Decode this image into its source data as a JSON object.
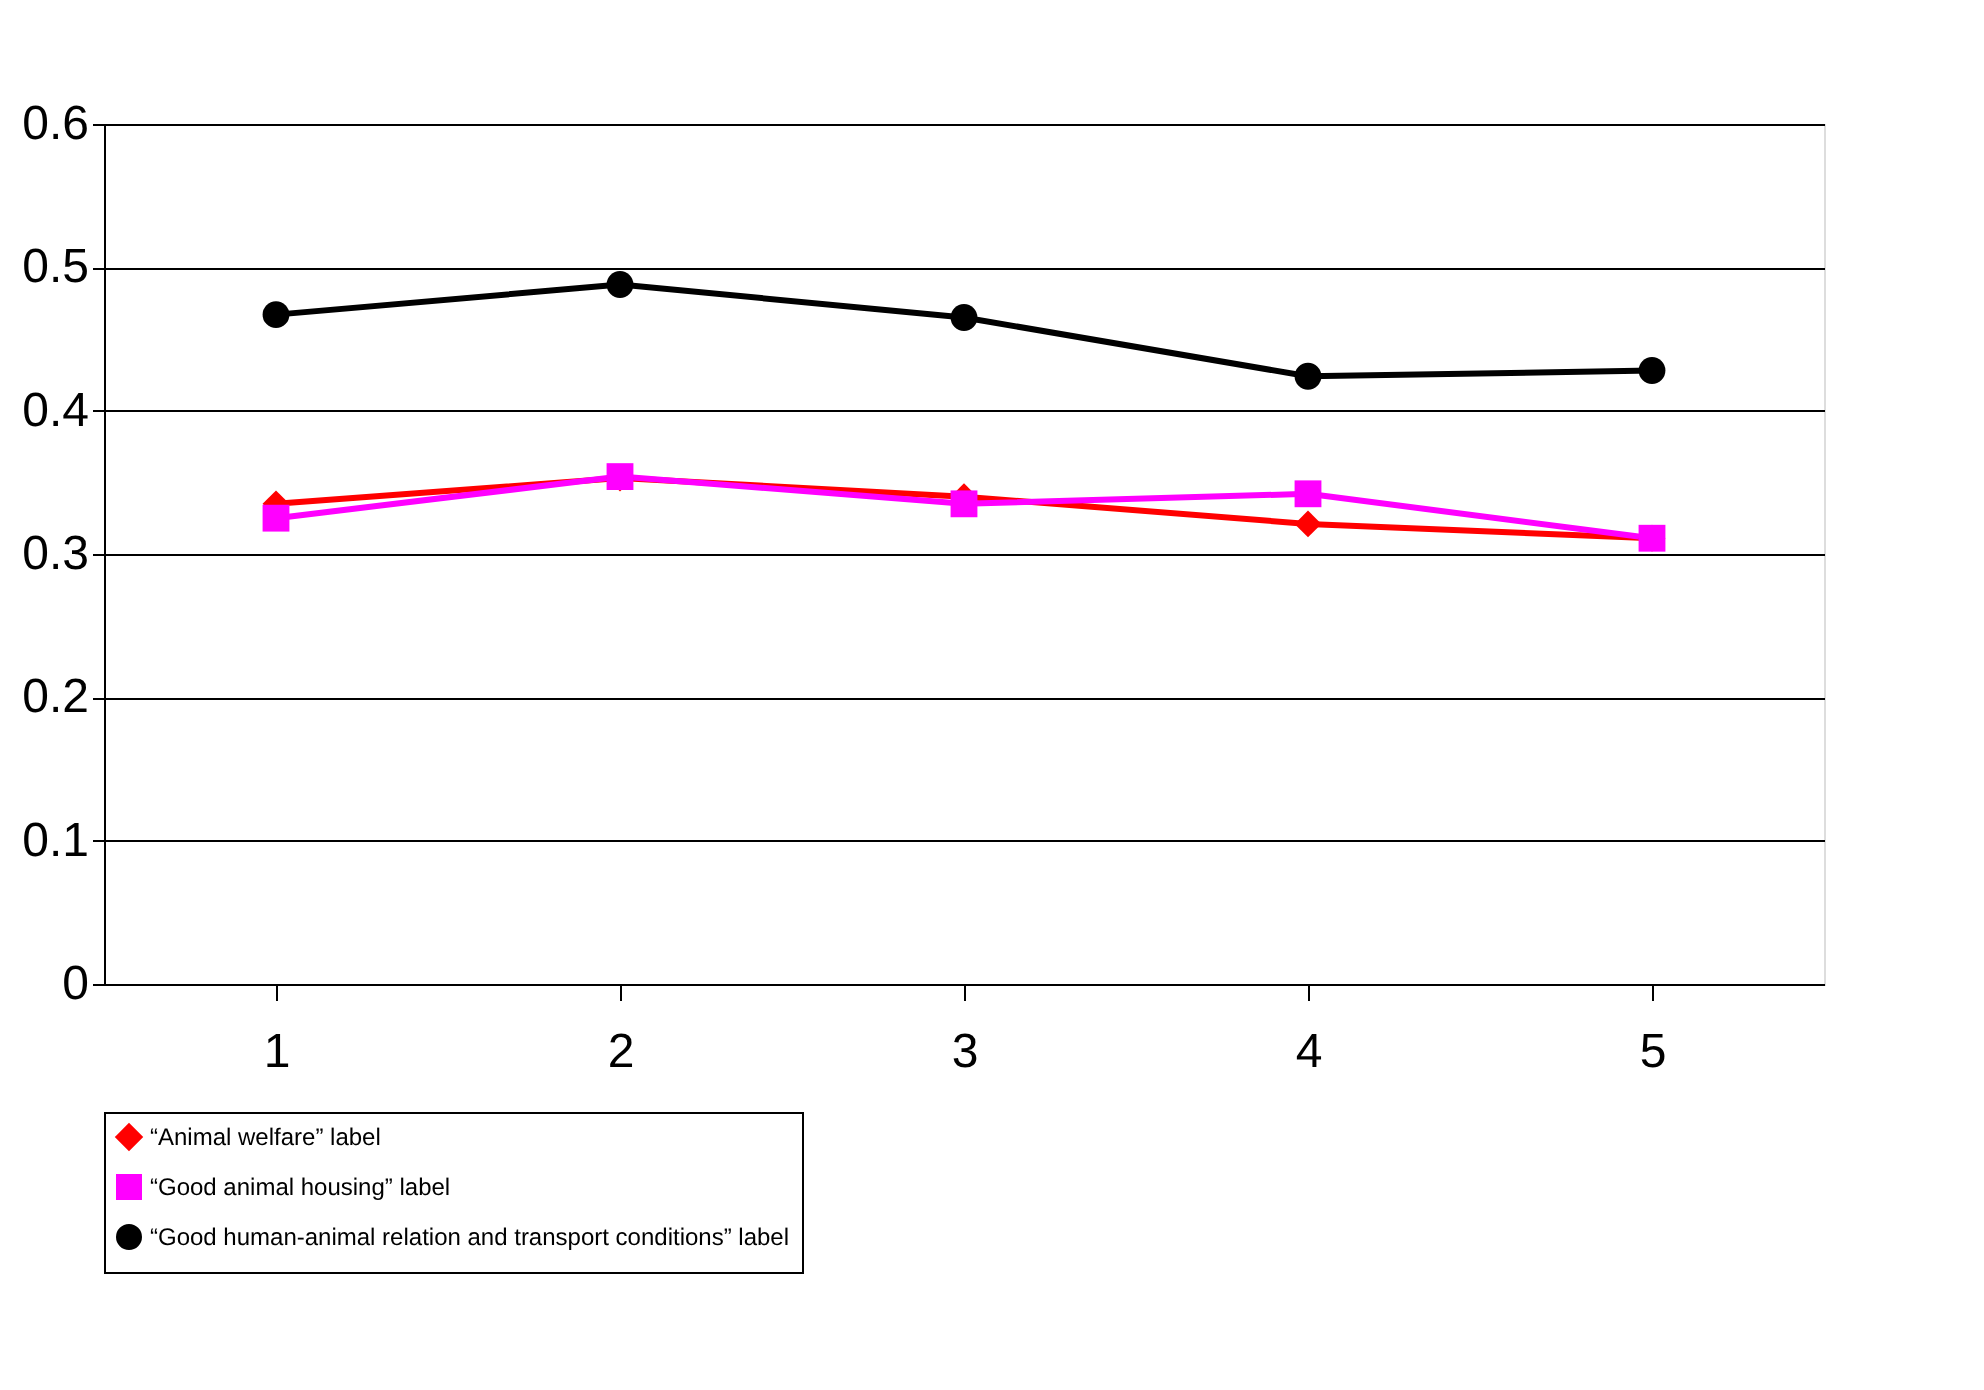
{
  "chart_data": {
    "type": "line",
    "categories": [
      "1",
      "2",
      "3",
      "4",
      "5"
    ],
    "series": [
      {
        "name": "“Animal welfare” label",
        "color": "#ff0000",
        "marker": "diamond",
        "values": [
          0.335,
          0.353,
          0.34,
          0.321,
          0.311
        ]
      },
      {
        "name": "“Good animal housing” label",
        "color": "#ff00ff",
        "marker": "square",
        "values": [
          0.325,
          0.354,
          0.335,
          0.342,
          0.311
        ]
      },
      {
        "name": "“Good human-animal relation and transport conditions” label",
        "color": "#000000",
        "marker": "circle",
        "values": [
          0.467,
          0.488,
          0.465,
          0.424,
          0.428
        ]
      }
    ],
    "ylim": [
      0,
      0.6
    ],
    "yticks": [
      0,
      0.1,
      0.2,
      0.3,
      0.4,
      0.5,
      0.6
    ],
    "grid": "y",
    "legend": "bottom",
    "line_style": "solid"
  }
}
